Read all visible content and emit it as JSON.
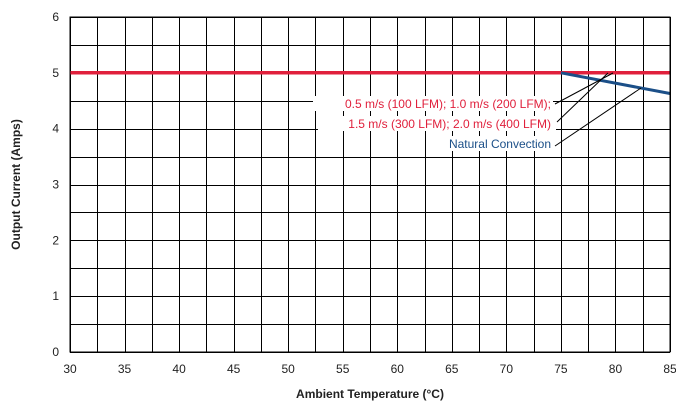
{
  "chart_data": {
    "type": "line",
    "xlabel": "Ambient Temperature (°C)",
    "ylabel": "Output Current (Amps)",
    "xlim": [
      30,
      85
    ],
    "ylim": [
      0,
      6
    ],
    "x_ticks": [
      "30",
      "35",
      "40",
      "45",
      "50",
      "55",
      "60",
      "65",
      "70",
      "75",
      "80",
      "85"
    ],
    "y_ticks": [
      "0",
      "1",
      "2",
      "3",
      "4",
      "5",
      "6"
    ],
    "x_minor_step": 2.5,
    "y_minor_step": 0.5,
    "grid": true,
    "series": [
      {
        "color": "#e0203c",
        "x": [
          30,
          85
        ],
        "y": [
          5,
          5
        ]
      },
      {
        "color": "#1b4f88",
        "x": [
          75,
          85
        ],
        "y": [
          5,
          4.63
        ]
      }
    ],
    "annotations": [
      {
        "lines": [
          "0.5 m/s (100 LFM); 1.0 m/s (200 LFM);",
          "1.5 m/s (300 LFM); 2.0 m/s (400 LFM)"
        ],
        "color": "#e0203c",
        "points_to_series": 0
      },
      {
        "lines": [
          "Natural Convection"
        ],
        "color": "#1b4f88",
        "points_to_series": 1
      }
    ]
  }
}
